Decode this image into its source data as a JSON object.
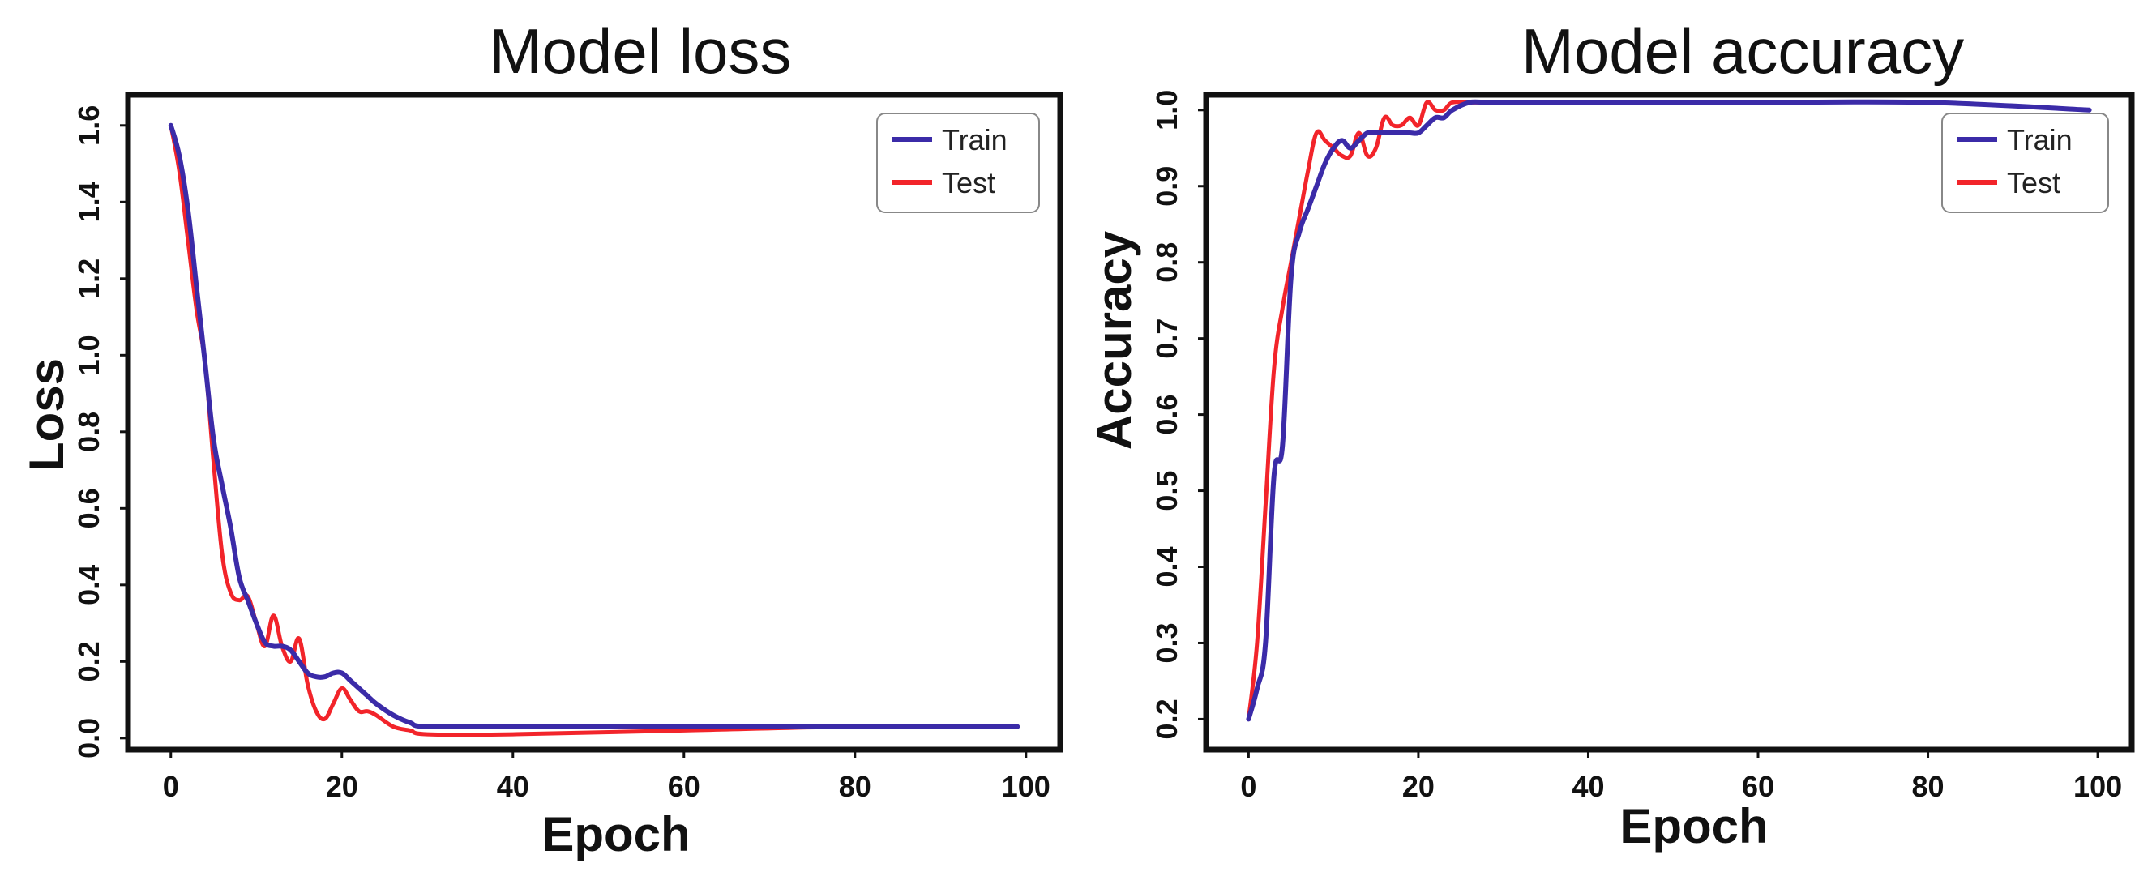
{
  "colors": {
    "train": "#3b2ba8",
    "test": "#f2242a",
    "axis": "#111111"
  },
  "chart_data": [
    {
      "type": "line",
      "title": "Model loss",
      "xlabel": "Epoch",
      "ylabel": "Loss",
      "xlim": [
        -5,
        104
      ],
      "ylim": [
        -0.03,
        1.68
      ],
      "xticks": [
        0,
        20,
        40,
        60,
        80,
        100
      ],
      "yticks": [
        0.0,
        0.2,
        0.4,
        0.6,
        0.8,
        1.0,
        1.2,
        1.4,
        1.6
      ],
      "xtick_labels": [
        "0",
        "20",
        "40",
        "60",
        "80",
        "100"
      ],
      "ytick_labels": [
        "0.0",
        "0.2",
        "0.4",
        "0.6",
        "0.8",
        "1.0",
        "1.2",
        "1.4",
        "1.6"
      ],
      "legend": {
        "position": "top-right",
        "entries": [
          "Train",
          "Test"
        ]
      },
      "series": [
        {
          "name": "Train",
          "x": [
            0,
            1,
            2,
            3,
            4,
            5,
            6,
            7,
            8,
            9,
            10,
            11,
            12,
            13,
            14,
            15,
            16,
            17,
            18,
            19,
            20,
            21,
            22,
            23,
            24,
            26,
            28,
            30,
            40,
            60,
            80,
            99
          ],
          "y": [
            1.6,
            1.52,
            1.38,
            1.18,
            0.98,
            0.78,
            0.66,
            0.55,
            0.42,
            0.36,
            0.3,
            0.25,
            0.24,
            0.24,
            0.23,
            0.2,
            0.17,
            0.16,
            0.16,
            0.17,
            0.17,
            0.15,
            0.13,
            0.11,
            0.09,
            0.06,
            0.04,
            0.03,
            0.03,
            0.03,
            0.03,
            0.03
          ]
        },
        {
          "name": "Test",
          "x": [
            0,
            1,
            2,
            3,
            4,
            5,
            6,
            7,
            8,
            9,
            10,
            11,
            12,
            13,
            14,
            15,
            16,
            17,
            18,
            19,
            20,
            21,
            22,
            23,
            24,
            26,
            28,
            30,
            40,
            60,
            80,
            99
          ],
          "y": [
            1.6,
            1.48,
            1.3,
            1.12,
            0.98,
            0.72,
            0.48,
            0.38,
            0.36,
            0.37,
            0.3,
            0.24,
            0.32,
            0.24,
            0.2,
            0.26,
            0.14,
            0.07,
            0.05,
            0.09,
            0.13,
            0.1,
            0.07,
            0.07,
            0.06,
            0.03,
            0.02,
            0.01,
            0.01,
            0.02,
            0.03,
            0.03
          ]
        }
      ]
    },
    {
      "type": "line",
      "title": "Model accuracy",
      "xlabel": "Epoch",
      "ylabel": "Accuracy",
      "xlim": [
        -5,
        104
      ],
      "ylim": [
        0.16,
        1.02
      ],
      "xticks": [
        0,
        20,
        40,
        60,
        80,
        100
      ],
      "yticks": [
        0.2,
        0.3,
        0.4,
        0.5,
        0.6,
        0.7,
        0.8,
        0.9,
        1.0
      ],
      "xtick_labels": [
        "0",
        "20",
        "40",
        "60",
        "80",
        "100"
      ],
      "ytick_labels": [
        "0.2",
        "0.3",
        "0.4",
        "0.5",
        "0.6",
        "0.7",
        "0.8",
        "0.9",
        "1.0"
      ],
      "legend": {
        "position": "top-right",
        "entries": [
          "Train",
          "Test"
        ]
      },
      "series": [
        {
          "name": "Train",
          "x": [
            0,
            1,
            2,
            3,
            4,
            5,
            6,
            7,
            8,
            9,
            10,
            11,
            12,
            13,
            14,
            15,
            16,
            17,
            18,
            19,
            20,
            21,
            22,
            23,
            24,
            26,
            28,
            30,
            40,
            60,
            80,
            99
          ],
          "y": [
            0.2,
            0.24,
            0.3,
            0.52,
            0.56,
            0.78,
            0.84,
            0.87,
            0.9,
            0.93,
            0.95,
            0.96,
            0.95,
            0.96,
            0.97,
            0.97,
            0.97,
            0.97,
            0.97,
            0.97,
            0.97,
            0.98,
            0.99,
            0.99,
            1.0,
            1.01,
            1.01,
            1.01,
            1.01,
            1.01,
            1.01,
            1.0
          ]
        },
        {
          "name": "Test",
          "x": [
            0,
            1,
            2,
            3,
            4,
            5,
            6,
            7,
            8,
            9,
            10,
            11,
            12,
            13,
            14,
            15,
            16,
            17,
            18,
            19,
            20,
            21,
            22,
            23,
            24,
            26,
            28,
            30,
            40,
            60,
            80,
            99
          ],
          "y": [
            0.2,
            0.3,
            0.48,
            0.66,
            0.74,
            0.8,
            0.86,
            0.92,
            0.97,
            0.96,
            0.95,
            0.94,
            0.94,
            0.97,
            0.94,
            0.95,
            0.99,
            0.98,
            0.98,
            0.99,
            0.98,
            1.01,
            1.0,
            1.0,
            1.01,
            1.01,
            1.01,
            1.01,
            1.01,
            1.01,
            1.01,
            1.0
          ]
        }
      ]
    }
  ]
}
